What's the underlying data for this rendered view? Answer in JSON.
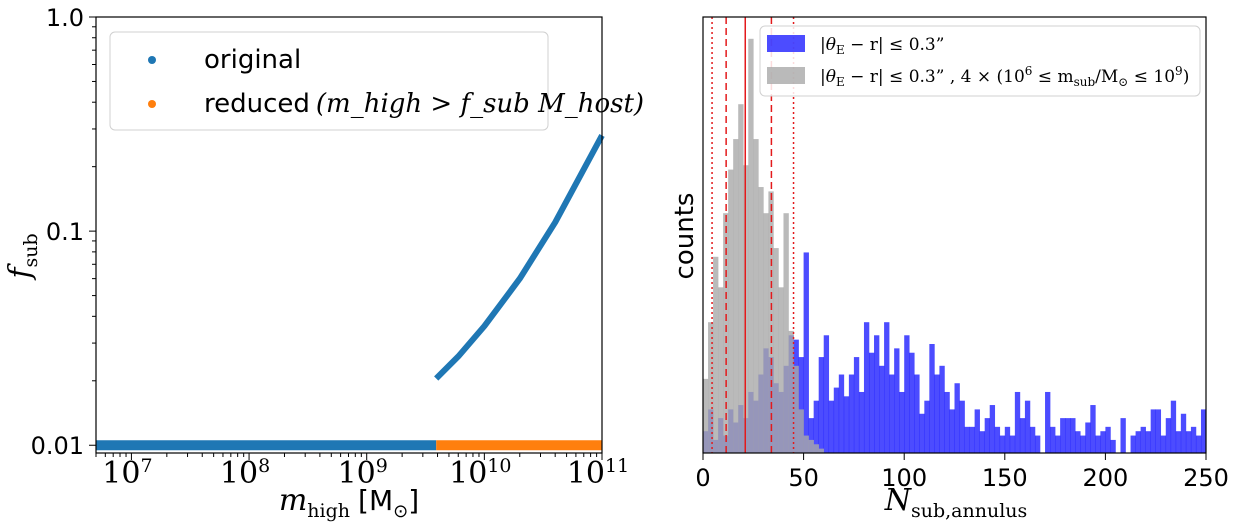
{
  "chart_data": [
    {
      "type": "scatter",
      "xlabel": "m_high [M_⊙]",
      "ylabel": "f_sub",
      "xscale": "log",
      "yscale": "log",
      "xlim": [
        5000000,
        100000000000
      ],
      "ylim": [
        0.0092,
        1.0
      ],
      "xticks": [
        {
          "value": 10000000,
          "base": "10",
          "exp": "7"
        },
        {
          "value": 100000000,
          "base": "10",
          "exp": "8"
        },
        {
          "value": 1000000000,
          "base": "10",
          "exp": "9"
        },
        {
          "value": 10000000000,
          "base": "10",
          "exp": "10"
        },
        {
          "value": 100000000000,
          "base": "10",
          "exp": "11"
        }
      ],
      "yticks": [
        {
          "value": 1.0,
          "label": "1.0"
        },
        {
          "value": 0.1,
          "label": "0.1"
        },
        {
          "value": 0.01,
          "label": "0.01"
        }
      ],
      "legend": {
        "placement": "upper-left"
      },
      "series": [
        {
          "name": "original",
          "color": "#1f77b4",
          "segments": [
            {
              "x": [
                5000000,
                3900000000
              ],
              "y": [
                0.01,
                0.01
              ]
            },
            {
              "x": [
                3900000000,
                6000000000,
                10000000000,
                20000000000,
                40000000000,
                100000000000
              ],
              "y": [
                0.0205,
                0.026,
                0.036,
                0.06,
                0.11,
                0.28
              ]
            }
          ]
        },
        {
          "name": "reduced",
          "name_math": "(m_high > f_sub M_host)",
          "color": "#ff7f0e",
          "segments": [
            {
              "x": [
                3900000000,
                100000000000
              ],
              "y": [
                0.01,
                0.01
              ]
            }
          ]
        }
      ],
      "axis_labels": {
        "x_main": "m",
        "x_sub": "high",
        "x_unit": "[M",
        "x_unit_sub": "⊙",
        "x_unit_close": "]",
        "y_main": "f",
        "y_sub": "sub"
      }
    },
    {
      "type": "bar",
      "subtype": "histogram",
      "xlabel": "N_sub,annulus",
      "ylabel": "counts",
      "xlim": [
        0,
        250
      ],
      "xticks": [
        0,
        50,
        100,
        150,
        200,
        250
      ],
      "bin_width": 2.5,
      "bin_start": 0,
      "ymax": 100,
      "legend": {
        "placement": "top-right"
      },
      "axis_labels": {
        "x_main": "N",
        "x_sub": "sub,annulus",
        "y": "counts"
      },
      "series": [
        {
          "name": "|θ_E − r| ≤ 0.3\"",
          "legend_text": "|θ",
          "legend_sub": "E",
          "legend_rest": " − r| ≤ 0.3”",
          "color": "#0000ff",
          "alpha": 0.7,
          "values": [
            5,
            10,
            3,
            8,
            4,
            10,
            7,
            11,
            8,
            14,
            12,
            18,
            24,
            22,
            16,
            14,
            20,
            27,
            26,
            22,
            46,
            8,
            12,
            22,
            27,
            12,
            15,
            18,
            13,
            18,
            22,
            14,
            30,
            23,
            27,
            20,
            30,
            18,
            24,
            14,
            27,
            23,
            18,
            9,
            12,
            25,
            18,
            20,
            14,
            10,
            16,
            12,
            6,
            6,
            10,
            5,
            8,
            11,
            6,
            4,
            6,
            4,
            14,
            8,
            12,
            6,
            4,
            0,
            14,
            6,
            4,
            8,
            8,
            8,
            5,
            4,
            7,
            11,
            4,
            5,
            6,
            3,
            0,
            8,
            0,
            4,
            5,
            6,
            5,
            10,
            10,
            4,
            8,
            12,
            5,
            9,
            5,
            6,
            4,
            10
          ]
        },
        {
          "name": "|θ_E − r| ≤ 0.3\", 4 × (10^6 ≤ m_sub/M_⊙ ≤ 10^9)",
          "legend_text": "|θ",
          "legend_sub": "E",
          "legend_rest": " − r| ≤ 0.3” , 4 × (10",
          "legend_sup6": "6",
          "legend_mid": " ≤ m",
          "legend_sub2": "sub",
          "legend_mid2": "/M",
          "legend_sub3": "⊙",
          "legend_mid3": " ≤ 10",
          "legend_sup9": "9",
          "legend_end": ")",
          "color": "#a9a9a9",
          "alpha": 0.8,
          "values": [
            17,
            30,
            45,
            38,
            55,
            65,
            72,
            80,
            66,
            95,
            72,
            61,
            55,
            60,
            47,
            38,
            55,
            28,
            20,
            10,
            4,
            3,
            2,
            1,
            0
          ]
        }
      ],
      "vlines": [
        {
          "x": 21,
          "style": "solid",
          "color": "#e31a1c"
        },
        {
          "x": 11.5,
          "style": "dashed",
          "color": "#e31a1c"
        },
        {
          "x": 34,
          "style": "dashed",
          "color": "#e31a1c"
        },
        {
          "x": 4.5,
          "style": "dotted",
          "color": "#e31a1c"
        },
        {
          "x": 45,
          "style": "dotted",
          "color": "#e31a1c"
        }
      ]
    }
  ]
}
